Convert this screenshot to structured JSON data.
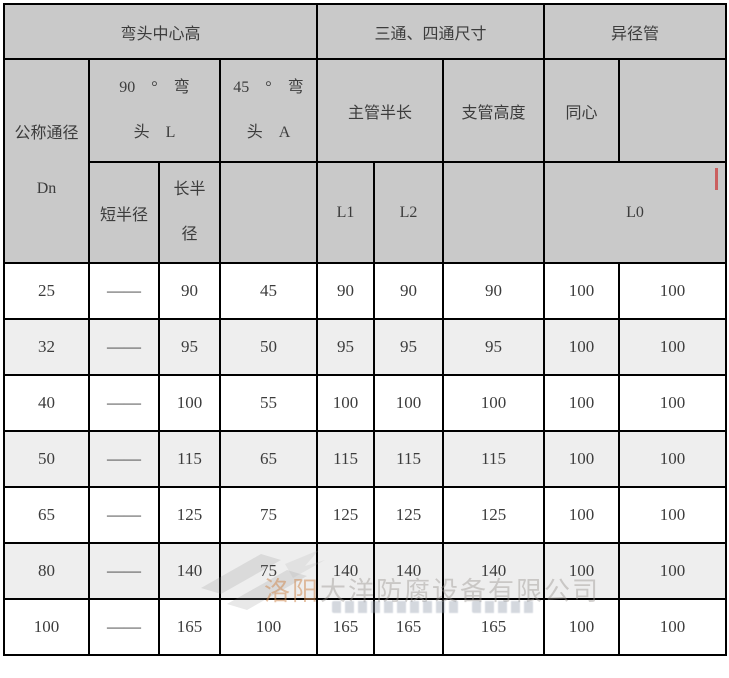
{
  "table": {
    "top_headers": {
      "elbow_center_height": "弯头中心高",
      "tee_cross_size": "三通、四通尺寸",
      "reducer": "异径管"
    },
    "nominal_diameter": {
      "line1": "公称通径",
      "line2": "Dn"
    },
    "elbow90": {
      "line1": "90　°　弯",
      "line2": "头　L"
    },
    "elbow45": {
      "line1": "45　°　弯",
      "line2": "头　A"
    },
    "sub_headers": {
      "short_radius": "短半径",
      "long_radius_line1": "长半",
      "long_radius_line2": "径",
      "main_half_length": "主管半长",
      "branch_height": "支管高度",
      "concentric": "同心",
      "l1": "L1",
      "l2": "L2",
      "l0": "L0"
    },
    "rows": [
      [
        "25",
        "——",
        "90",
        "45",
        "90",
        "90",
        "90",
        "100",
        "100"
      ],
      [
        "32",
        "——",
        "95",
        "50",
        "95",
        "95",
        "95",
        "100",
        "100"
      ],
      [
        "40",
        "——",
        "100",
        "55",
        "100",
        "100",
        "100",
        "100",
        "100"
      ],
      [
        "50",
        "——",
        "115",
        "65",
        "115",
        "115",
        "115",
        "100",
        "100"
      ],
      [
        "65",
        "——",
        "125",
        "75",
        "125",
        "125",
        "125",
        "100",
        "100"
      ],
      [
        "80",
        "——",
        "140",
        "75",
        "140",
        "140",
        "140",
        "100",
        "100"
      ],
      [
        "100",
        "——",
        "165",
        "100",
        "165",
        "165",
        "165",
        "100",
        "100"
      ]
    ]
  },
  "watermark": {
    "company_prefix": "洛阳",
    "company_rest": "大洋防腐设备有限公司"
  },
  "colors": {
    "header_bg": "#c9c9c9",
    "alt_row_bg": "#eeeeee",
    "border": "#000000",
    "cursor_red": "#ca5f5f"
  }
}
